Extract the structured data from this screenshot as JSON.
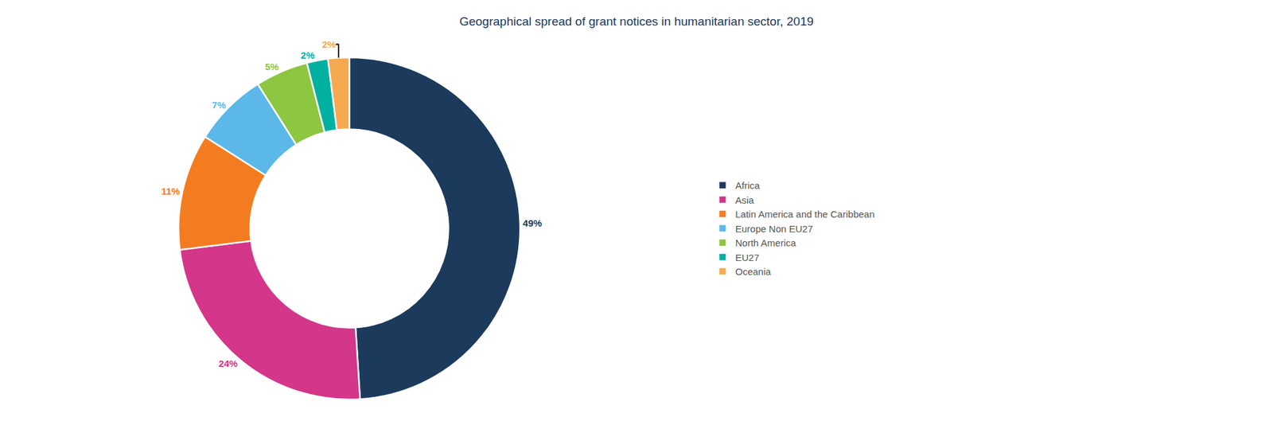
{
  "chart_data": {
    "type": "donut",
    "title": "Geographical spread of grant notices in humanitarian sector, 2019",
    "categories": [
      "Africa",
      "Asia",
      "Latin America and the Caribbean",
      "Europe Non EU27",
      "North America",
      "EU27",
      "Oceania"
    ],
    "values": [
      49,
      24,
      11,
      7,
      5,
      2,
      2
    ],
    "value_labels": [
      "49%",
      "24%",
      "11%",
      "7%",
      "5%",
      "2%",
      "2%"
    ],
    "colors": [
      "#1b3a5c",
      "#d4368a",
      "#f47c20",
      "#5bb8e8",
      "#8dc641",
      "#00b0a0",
      "#f5a94e"
    ],
    "data_labels": true,
    "legend": "right"
  }
}
